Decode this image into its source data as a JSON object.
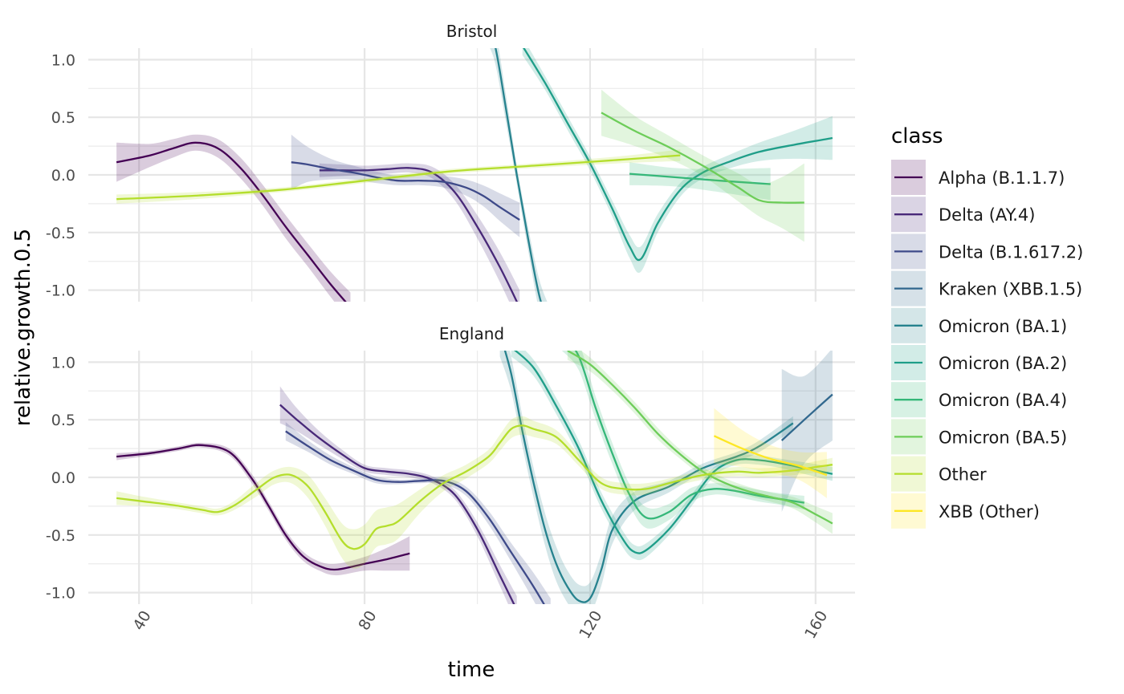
{
  "chart_data": {
    "type": "line",
    "xlabel": "time",
    "ylabel": "relative.growth.0.5",
    "xlim": [
      31,
      167
    ],
    "ylim": [
      -1.1,
      1.1
    ],
    "x_ticks": [
      40,
      80,
      120,
      160
    ],
    "x_tick_labels": [
      "40",
      "80",
      "120",
      "160"
    ],
    "y_ticks": [
      -1.0,
      -0.5,
      0.0,
      0.5,
      1.0
    ],
    "y_tick_labels": [
      "-1.0",
      "-0.5",
      "0.0",
      "0.5",
      "1.0"
    ],
    "grid": true,
    "legend": {
      "title": "class",
      "position": "right"
    },
    "classes": [
      {
        "name": "Alpha (B.1.1.7)",
        "color": "#440154"
      },
      {
        "name": "Delta (AY.4)",
        "color": "#482878"
      },
      {
        "name": "Delta (B.1.617.2)",
        "color": "#3E4A89"
      },
      {
        "name": "Kraken (XBB.1.5)",
        "color": "#31688E"
      },
      {
        "name": "Omicron (BA.1)",
        "color": "#26828E"
      },
      {
        "name": "Omicron (BA.2)",
        "color": "#1F9E89"
      },
      {
        "name": "Omicron (BA.4)",
        "color": "#35B779"
      },
      {
        "name": "Omicron (BA.5)",
        "color": "#6DCD59"
      },
      {
        "name": "Other",
        "color": "#B4DE2C"
      },
      {
        "name": "XBB (Other)",
        "color": "#FDE725"
      }
    ],
    "facets": [
      {
        "name": "Bristol",
        "series": [
          {
            "class": "Alpha (B.1.1.7)",
            "x": [
              36,
              42,
              46,
              50,
              54,
              58,
              62,
              66,
              70,
              74,
              77.5
            ],
            "y": [
              0.11,
              0.17,
              0.23,
              0.28,
              0.23,
              0.06,
              -0.18,
              -0.45,
              -0.7,
              -0.95,
              -1.15
            ],
            "band": [
              0.17,
              0.1,
              0.08,
              0.07,
              0.08,
              0.09,
              0.09,
              0.1,
              0.1,
              0.11,
              0.13
            ]
          },
          {
            "class": "Delta (AY.4)",
            "x": [
              72,
              76,
              80,
              84,
              88,
              92,
              96,
              100,
              104,
              107.5
            ],
            "y": [
              0.04,
              0.04,
              0.04,
              0.05,
              0.06,
              0.02,
              -0.15,
              -0.45,
              -0.8,
              -1.15
            ],
            "band": [
              0.06,
              0.05,
              0.04,
              0.04,
              0.04,
              0.05,
              0.07,
              0.1,
              0.13,
              0.15
            ]
          },
          {
            "class": "Delta (B.1.617.2)",
            "x": [
              67,
              70,
              74,
              78,
              82,
              86,
              90,
              94,
              98,
              101,
              104,
              107.5
            ],
            "y": [
              0.11,
              0.09,
              0.05,
              0.02,
              -0.02,
              -0.05,
              -0.05,
              -0.06,
              -0.11,
              -0.18,
              -0.28,
              -0.39
            ],
            "band": [
              0.24,
              0.15,
              0.09,
              0.06,
              0.05,
              0.04,
              0.04,
              0.05,
              0.07,
              0.09,
              0.12,
              0.15
            ]
          },
          {
            "class": "Omicron (BA.1)",
            "x": [
              101,
              103,
              105,
              107,
              109,
              111,
              113
            ],
            "y": [
              1.35,
              1.15,
              0.6,
              0.0,
              -0.55,
              -1.05,
              -1.35
            ],
            "band": [
              0.15,
              0.15,
              0.12,
              0.08,
              0.1,
              0.14,
              0.18
            ]
          },
          {
            "class": "Omicron (BA.2)",
            "x": [
              108,
              112,
              116,
              120,
              124,
              127,
              129,
              132,
              136,
              140,
              145,
              150,
              156,
              163
            ],
            "y": [
              1.12,
              0.8,
              0.45,
              0.1,
              -0.3,
              -0.62,
              -0.73,
              -0.42,
              -0.13,
              0.02,
              0.12,
              0.2,
              0.26,
              0.32
            ],
            "band": [
              0.08,
              0.06,
              0.06,
              0.06,
              0.07,
              0.1,
              0.11,
              0.08,
              0.06,
              0.05,
              0.06,
              0.08,
              0.12,
              0.19
            ]
          },
          {
            "class": "Omicron (BA.4)",
            "x": [
              127,
              135,
              143,
              152
            ],
            "y": [
              0.01,
              -0.02,
              -0.05,
              -0.08
            ],
            "band": [
              0.1,
              0.08,
              0.1,
              0.14
            ]
          },
          {
            "class": "Omicron (BA.5)",
            "x": [
              122,
              128,
              134,
              140,
              146,
              150,
              154,
              158
            ],
            "y": [
              0.54,
              0.38,
              0.24,
              0.08,
              -0.1,
              -0.22,
              -0.24,
              -0.24
            ],
            "band": [
              0.2,
              0.13,
              0.1,
              0.09,
              0.12,
              0.14,
              0.22,
              0.34
            ]
          },
          {
            "class": "Other",
            "x": [
              36,
              50,
              65,
              80,
              95,
              110,
              125,
              136
            ],
            "y": [
              -0.21,
              -0.18,
              -0.13,
              -0.05,
              0.03,
              0.08,
              0.13,
              0.17
            ],
            "band": [
              0.04,
              0.03,
              0.02,
              0.02,
              0.02,
              0.02,
              0.03,
              0.05
            ]
          }
        ]
      },
      {
        "name": "England",
        "series": [
          {
            "class": "Alpha (B.1.1.7)",
            "x": [
              36,
              42,
              47,
              51,
              56,
              60,
              63,
              66,
              69,
              72,
              75,
              80,
              84,
              88
            ],
            "y": [
              0.18,
              0.21,
              0.25,
              0.28,
              0.22,
              -0.01,
              -0.25,
              -0.5,
              -0.68,
              -0.77,
              -0.8,
              -0.75,
              -0.71,
              -0.66
            ],
            "band": [
              0.03,
              0.02,
              0.02,
              0.02,
              0.03,
              0.04,
              0.04,
              0.04,
              0.04,
              0.04,
              0.05,
              0.06,
              0.1,
              0.15
            ]
          },
          {
            "class": "Delta (AY.4)",
            "x": [
              65,
              68,
              72,
              76,
              80,
              84,
              88,
              92,
              96,
              100,
              104,
              107
            ],
            "y": [
              0.63,
              0.5,
              0.34,
              0.2,
              0.08,
              0.05,
              0.03,
              -0.02,
              -0.15,
              -0.45,
              -0.85,
              -1.15
            ],
            "band": [
              0.16,
              0.1,
              0.06,
              0.04,
              0.03,
              0.03,
              0.03,
              0.03,
              0.04,
              0.06,
              0.09,
              0.12
            ]
          },
          {
            "class": "Delta (B.1.617.2)",
            "x": [
              66,
              70,
              74,
              78,
              82,
              86,
              90,
              94,
              98,
              102,
              106,
              110,
              113
            ],
            "y": [
              0.4,
              0.27,
              0.15,
              0.06,
              -0.02,
              -0.04,
              -0.03,
              -0.03,
              -0.12,
              -0.35,
              -0.65,
              -0.95,
              -1.2
            ],
            "band": [
              0.08,
              0.05,
              0.04,
              0.03,
              0.03,
              0.02,
              0.02,
              0.03,
              0.04,
              0.06,
              0.08,
              0.12,
              0.15
            ]
          },
          {
            "class": "Kraken (XBB.1.5)",
            "x": [
              154,
              158,
              163
            ],
            "y": [
              0.32,
              0.5,
              0.72
            ],
            "band": [
              0.62,
              0.38,
              0.4
            ]
          },
          {
            "class": "Omicron (BA.1)",
            "x": [
              104,
              106,
              108,
              110,
              112,
              114,
              116,
              118,
              120,
              122,
              124,
              128,
              134,
              140,
              146,
              150,
              156
            ],
            "y": [
              1.25,
              0.9,
              0.4,
              -0.05,
              -0.45,
              -0.75,
              -0.95,
              -1.07,
              -1.05,
              -0.8,
              -0.45,
              -0.2,
              -0.08,
              0.08,
              0.18,
              0.27,
              0.47
            ],
            "band": [
              0.2,
              0.15,
              0.13,
              0.13,
              0.14,
              0.15,
              0.14,
              0.14,
              0.14,
              0.14,
              0.12,
              0.08,
              0.05,
              0.04,
              0.04,
              0.05,
              0.06
            ]
          },
          {
            "class": "Omicron (BA.2)",
            "x": [
              106,
              110,
              114,
              118,
              122,
              126,
              128,
              130,
              134,
              138,
              142,
              146,
              150,
              154,
              158,
              163
            ],
            "y": [
              1.13,
              0.95,
              0.62,
              0.25,
              -0.2,
              -0.55,
              -0.65,
              -0.63,
              -0.45,
              -0.2,
              0.05,
              0.15,
              0.15,
              0.12,
              0.08,
              0.03
            ],
            "band": [
              0.08,
              0.07,
              0.07,
              0.07,
              0.07,
              0.07,
              0.06,
              0.06,
              0.05,
              0.05,
              0.04,
              0.04,
              0.04,
              0.04,
              0.05,
              0.06
            ]
          },
          {
            "class": "Omicron (BA.4)",
            "x": [
              115,
              118,
              121,
              124,
              127,
              130,
              134,
              138,
              142,
              146,
              150,
              154,
              158
            ],
            "y": [
              1.25,
              1.05,
              0.6,
              0.2,
              -0.15,
              -0.35,
              -0.3,
              -0.15,
              -0.1,
              -0.12,
              -0.16,
              -0.19,
              -0.22
            ],
            "band": [
              0.15,
              0.12,
              0.1,
              0.09,
              0.09,
              0.09,
              0.07,
              0.06,
              0.05,
              0.05,
              0.05,
              0.05,
              0.06
            ]
          },
          {
            "class": "Omicron (BA.5)",
            "x": [
              116,
              120,
              124,
              128,
              132,
              136,
              140,
              144,
              148,
              152,
              156,
              160,
              163
            ],
            "y": [
              1.1,
              0.98,
              0.8,
              0.6,
              0.38,
              0.2,
              0.05,
              -0.05,
              -0.12,
              -0.17,
              -0.22,
              -0.32,
              -0.4
            ],
            "band": [
              0.08,
              0.06,
              0.05,
              0.05,
              0.05,
              0.04,
              0.04,
              0.04,
              0.04,
              0.04,
              0.05,
              0.07,
              0.09
            ]
          },
          {
            "class": "Other",
            "x": [
              36,
              41,
              46,
              51,
              54,
              57,
              61,
              64,
              67,
              70,
              73,
              76,
              78,
              80,
              82,
              84,
              86,
              90,
              94,
              98,
              102,
              104,
              106,
              108,
              110,
              114,
              118,
              122,
              126,
              130,
              134,
              140,
              146,
              150,
              156,
              160,
              163
            ],
            "y": [
              -0.18,
              -0.21,
              -0.24,
              -0.28,
              -0.3,
              -0.24,
              -0.1,
              0.0,
              0.02,
              -0.08,
              -0.3,
              -0.55,
              -0.62,
              -0.58,
              -0.45,
              -0.42,
              -0.38,
              -0.2,
              -0.05,
              0.05,
              0.18,
              0.3,
              0.42,
              0.45,
              0.42,
              0.35,
              0.15,
              -0.05,
              -0.1,
              -0.1,
              -0.05,
              0.02,
              0.05,
              0.04,
              0.06,
              0.09,
              0.11
            ],
            "band": [
              0.06,
              0.04,
              0.03,
              0.03,
              0.03,
              0.04,
              0.06,
              0.06,
              0.07,
              0.1,
              0.12,
              0.15,
              0.17,
              0.17,
              0.16,
              0.16,
              0.15,
              0.1,
              0.07,
              0.06,
              0.06,
              0.07,
              0.08,
              0.08,
              0.07,
              0.06,
              0.05,
              0.05,
              0.05,
              0.05,
              0.04,
              0.04,
              0.04,
              0.04,
              0.04,
              0.05,
              0.06
            ]
          },
          {
            "class": "XBB (Other)",
            "x": [
              142,
              147,
              152,
              157,
              162
            ],
            "y": [
              0.36,
              0.25,
              0.16,
              0.1,
              0.02
            ],
            "band": [
              0.24,
              0.16,
              0.12,
              0.12,
              0.2
            ]
          }
        ]
      }
    ]
  }
}
